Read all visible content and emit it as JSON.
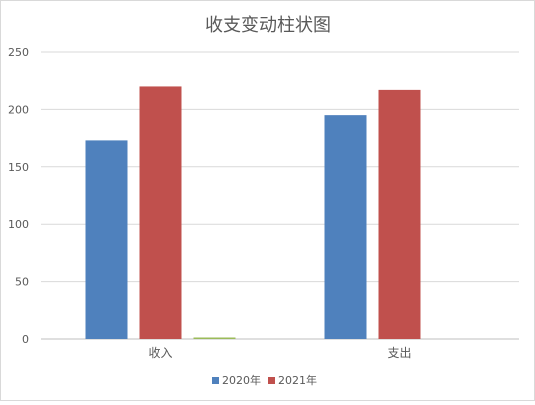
{
  "chart_data": {
    "type": "bar",
    "title": "收支变动柱状图",
    "categories": [
      "收入",
      "支出"
    ],
    "series": [
      {
        "name": "2020年",
        "color": "#4f81bd",
        "values": [
          173,
          195
        ]
      },
      {
        "name": "2021年",
        "color": "#c0504d",
        "values": [
          220,
          217
        ]
      },
      {
        "name": "",
        "color": "#9bbb59",
        "values": [
          1,
          0
        ]
      }
    ],
    "ylim": [
      0,
      250
    ],
    "yticks": [
      0,
      50,
      100,
      150,
      200,
      250
    ],
    "grid": true,
    "legend": "bottom"
  }
}
